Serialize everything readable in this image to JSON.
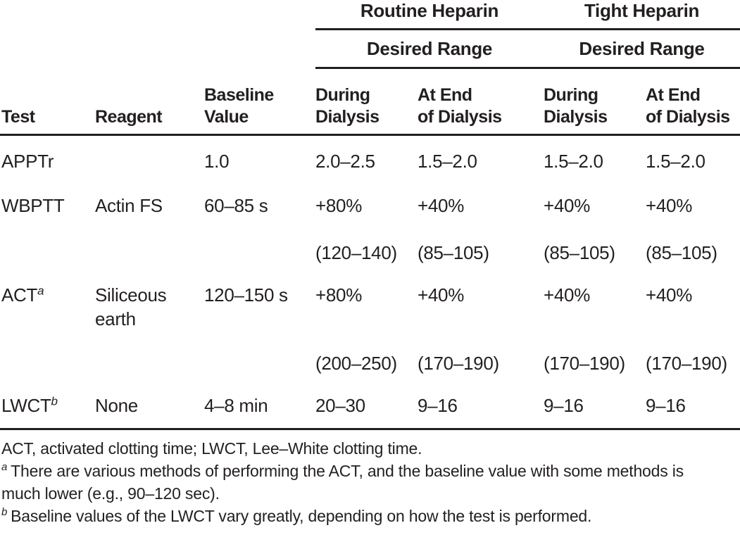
{
  "colors": {
    "text": "#231f20",
    "rule": "#231f20",
    "background": "#ffffff"
  },
  "table": {
    "group_headers": {
      "routine": "Routine Heparin",
      "tight": "Tight Heparin"
    },
    "subgroup_headers": {
      "routine": "Desired Range",
      "tight": "Desired Range"
    },
    "columns": [
      {
        "line1": "",
        "line2": "Test"
      },
      {
        "line1": "",
        "line2": "Reagent"
      },
      {
        "line1": "Baseline",
        "line2": "Value"
      },
      {
        "line1": "During",
        "line2": "Dialysis"
      },
      {
        "line1": "At End",
        "line2": "of Dialysis"
      },
      {
        "line1": "During",
        "line2": "Dialysis"
      },
      {
        "line1": "At End",
        "line2": "of Dialysis"
      }
    ],
    "rows": [
      {
        "test": "APPTr",
        "test_sup": "",
        "reagent": "",
        "baseline": "1.0",
        "values": [
          "2.0–2.5",
          "1.5–2.0",
          "1.5–2.0",
          "1.5–2.0"
        ]
      },
      {
        "test": "WBPTT",
        "test_sup": "",
        "reagent": "Actin FS",
        "baseline": "60–85 s",
        "values": [
          "+80%",
          "+40%",
          "+40%",
          "+40%"
        ]
      },
      {
        "test": "",
        "test_sup": "",
        "reagent": "",
        "baseline": "",
        "values": [
          "(120–140)",
          "(85–105)",
          "(85–105)",
          "(85–105)"
        ]
      },
      {
        "test": "ACT",
        "test_sup": "a",
        "reagent": "Siliceous earth",
        "baseline": "120–150 s",
        "values": [
          "+80%",
          "+40%",
          "+40%",
          "+40%"
        ]
      },
      {
        "test": "",
        "test_sup": "",
        "reagent": "",
        "baseline": "",
        "values": [
          "(200–250)",
          "(170–190)",
          "(170–190)",
          "(170–190)"
        ]
      },
      {
        "test": "LWCT",
        "test_sup": "b",
        "reagent": "None",
        "baseline": "4–8 min",
        "values": [
          "20–30",
          "9–16",
          "9–16",
          "9–16"
        ]
      }
    ]
  },
  "footnotes": {
    "abbreviations": "ACT, activated clotting time; LWCT, Lee–White clotting time.",
    "notes": [
      {
        "marker": "a",
        "line1": "There are various methods of performing the ACT, and the baseline value with some methods is",
        "line2": "much lower (e.g., 90–120 sec)."
      },
      {
        "marker": "b",
        "line1": "Baseline values of the LWCT vary greatly, depending on how the test is performed.",
        "line2": ""
      }
    ]
  }
}
